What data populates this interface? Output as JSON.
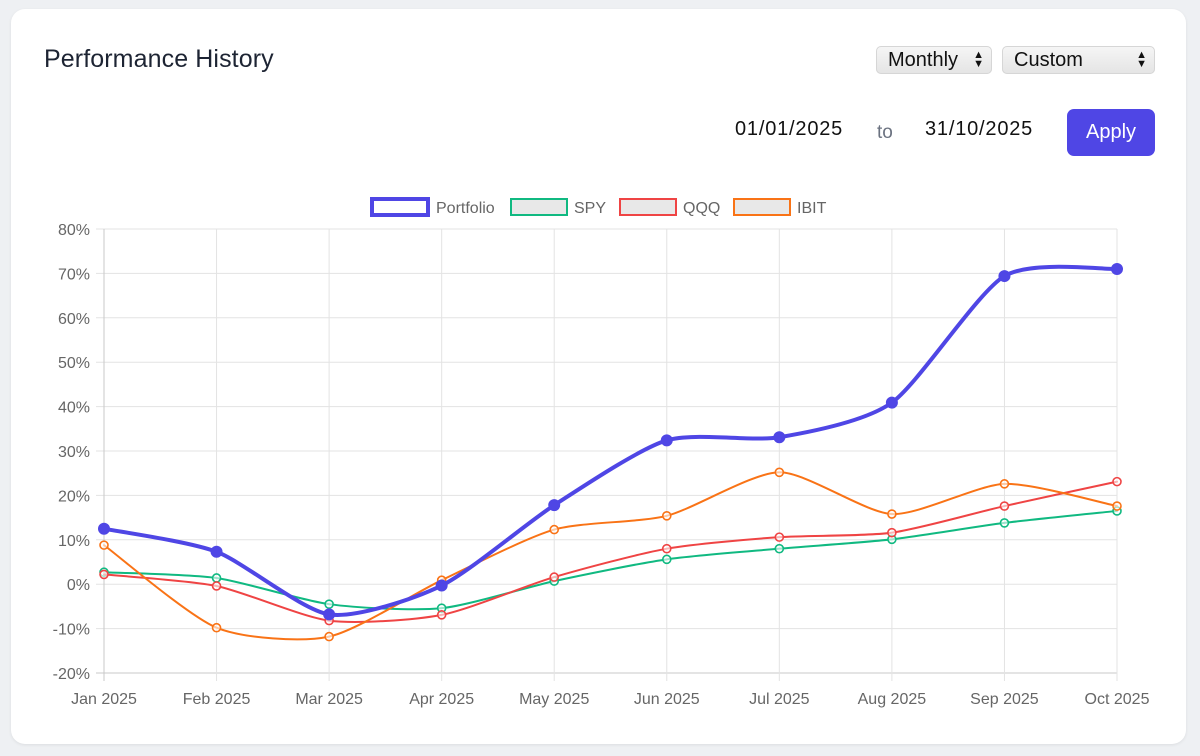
{
  "header": {
    "title": "Performance History",
    "interval_select": "Monthly",
    "range_select": "Custom",
    "start_date": "01/01/2025",
    "to_label": "to",
    "end_date": "31/10/2025",
    "apply_label": "Apply"
  },
  "colors": {
    "accent": "#4f46e5",
    "spy": "#10b981",
    "qqq": "#ef4444",
    "ibit": "#f97316"
  },
  "chart_data": {
    "type": "line",
    "title": "",
    "xlabel": "",
    "ylabel": "",
    "ylim": [
      -20,
      80
    ],
    "ytick_step": 10,
    "y_format": "percent",
    "grid": true,
    "legend_position": "top-center",
    "categories": [
      "Jan 2025",
      "Feb 2025",
      "Mar 2025",
      "Apr 2025",
      "May 2025",
      "Jun 2025",
      "Jul 2025",
      "Aug 2025",
      "Sep 2025",
      "Oct 2025"
    ],
    "series": [
      {
        "name": "Portfolio",
        "color": "#4f46e5",
        "values": [
          12.5,
          7.3,
          -6.8,
          -0.3,
          17.8,
          32.4,
          33.1,
          40.9,
          69.4,
          71.0
        ]
      },
      {
        "name": "SPY",
        "color": "#10b981",
        "values": [
          2.7,
          1.4,
          -4.5,
          -5.4,
          0.7,
          5.6,
          8.0,
          10.1,
          13.8,
          16.5
        ]
      },
      {
        "name": "QQQ",
        "color": "#ef4444",
        "values": [
          2.2,
          -0.4,
          -8.2,
          -6.9,
          1.6,
          8.0,
          10.6,
          11.6,
          17.6,
          23.1
        ]
      },
      {
        "name": "IBIT",
        "color": "#f97316",
        "values": [
          8.8,
          -9.8,
          -11.8,
          0.9,
          12.3,
          15.4,
          25.2,
          15.8,
          22.6,
          17.6
        ]
      }
    ]
  }
}
